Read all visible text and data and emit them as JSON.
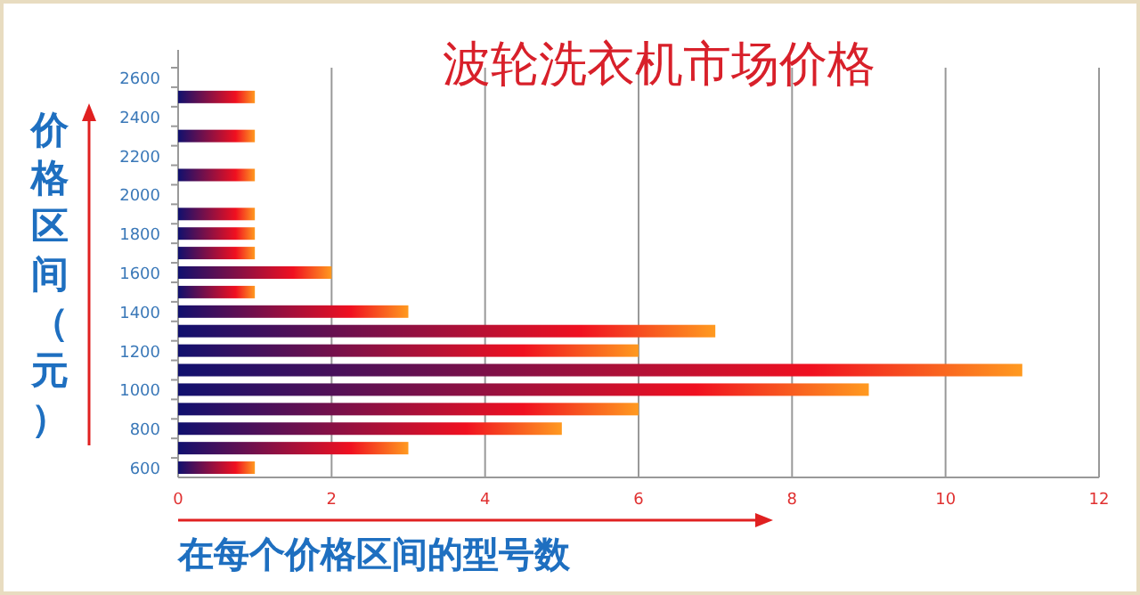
{
  "chart_data": {
    "type": "bar",
    "orientation": "horizontal",
    "title": "波轮洗衣机市场价格",
    "xlabel": "在每个价格区间的型号数",
    "ylabel": "价格区间（元）",
    "categories": [
      "2600",
      null,
      "2400",
      null,
      "2200",
      null,
      "2000",
      null,
      "1800",
      null,
      "1600",
      null,
      "1400",
      null,
      "1200",
      null,
      "1000",
      null,
      "800",
      null,
      "600"
    ],
    "values": [
      0,
      1,
      0,
      1,
      0,
      1,
      0,
      1,
      1,
      1,
      2,
      1,
      3,
      7,
      6,
      11,
      9,
      6,
      5,
      3,
      1
    ],
    "color": "#f01020",
    "xlim": [
      0,
      12
    ],
    "xticks": [
      0,
      2,
      4,
      6,
      8,
      10,
      12
    ],
    "grid": "x"
  }
}
